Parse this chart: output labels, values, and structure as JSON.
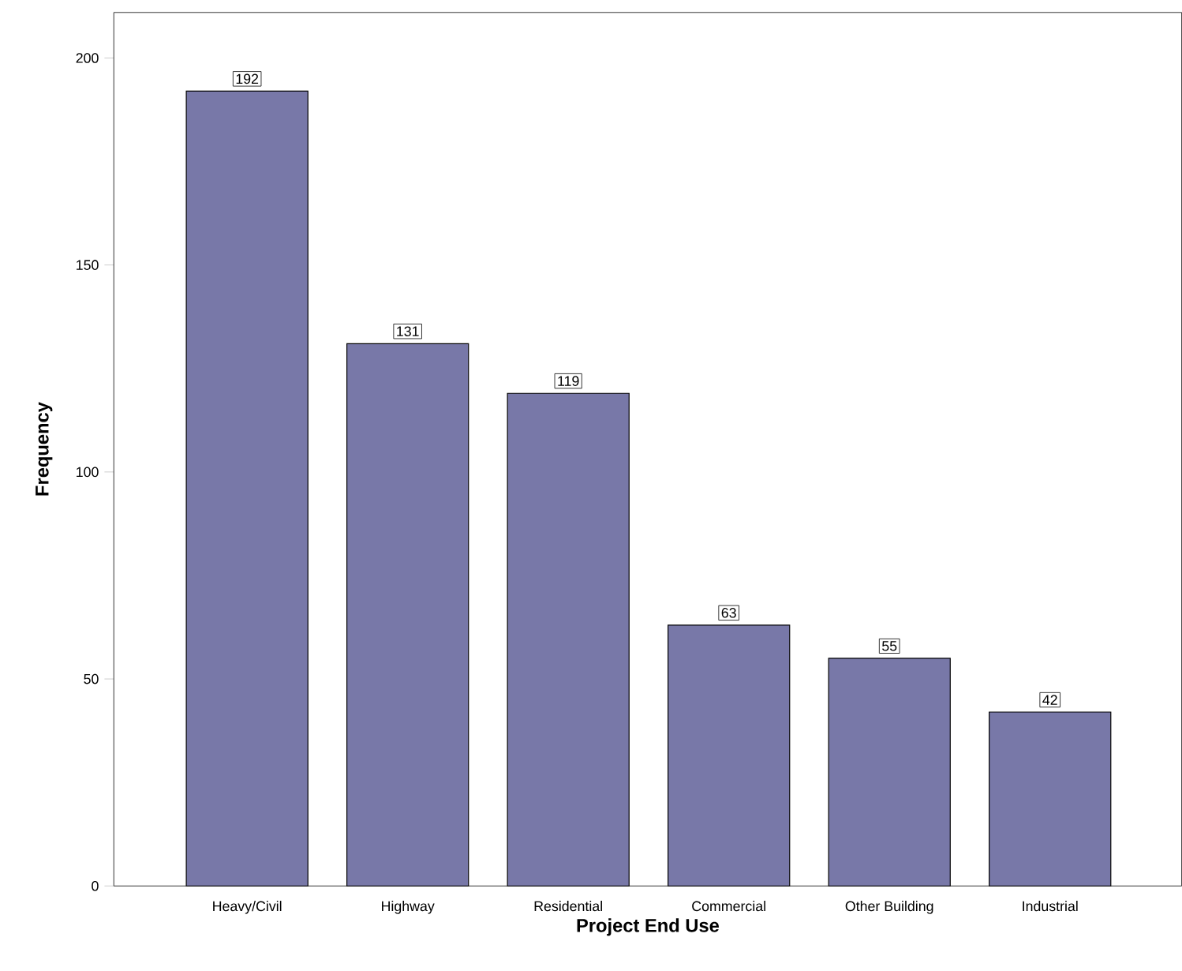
{
  "chart_data": {
    "type": "bar",
    "xlabel": "Project End Use",
    "ylabel": "Frequency",
    "categories": [
      "Heavy/Civil",
      "Highway",
      "Residential",
      "Commercial",
      "Other Building",
      "Industrial"
    ],
    "values": [
      192,
      131,
      119,
      63,
      55,
      42
    ],
    "color": "#7878a8",
    "ylim": [
      0,
      211
    ],
    "yticks": [
      0,
      50,
      100,
      150,
      200
    ],
    "grid": false,
    "data_labels": true
  }
}
